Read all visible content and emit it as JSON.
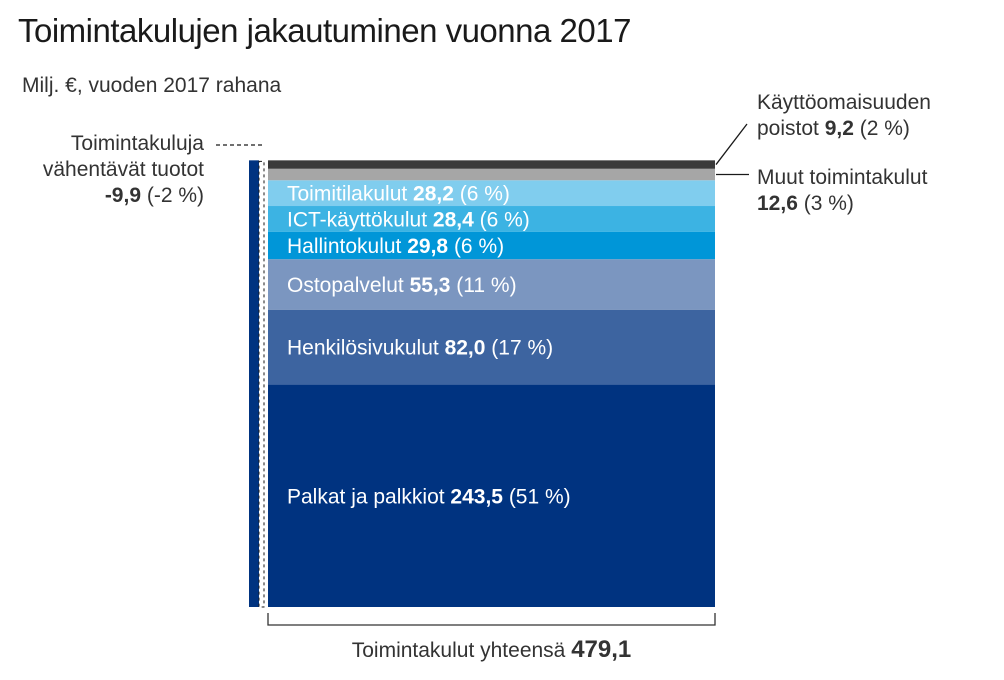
{
  "title": "Toimintakulujen jakautuminen vuonna 2017",
  "subtitle": "Milj. €, vuoden 2017 rahana",
  "chart_data": {
    "type": "bar",
    "title": "Toimintakulujen jakautuminen vuonna 2017",
    "subtitle": "Milj. €, vuoden 2017 rahana",
    "stacked": true,
    "segments": [
      {
        "name": "Palkat ja palkkiot",
        "value_label": "243,5",
        "pct_label": "(51 %)",
        "value": 243.5,
        "color": "#003380",
        "text_color": "#ffffff",
        "label_inside": true
      },
      {
        "name": "Henkilösivukulut",
        "value_label": "82,0",
        "pct_label": "(17 %)",
        "value": 82.0,
        "color": "#3d64a0",
        "text_color": "#ffffff",
        "label_inside": true
      },
      {
        "name": "Ostopalvelut",
        "value_label": "55,3",
        "pct_label": "(11 %)",
        "value": 55.3,
        "color": "#7b96c0",
        "text_color": "#ffffff",
        "label_inside": true
      },
      {
        "name": "Hallintokulut",
        "value_label": "29,8",
        "pct_label": "(6 %)",
        "value": 29.8,
        "color": "#0096d8",
        "text_color": "#ffffff",
        "label_inside": true
      },
      {
        "name": "ICT-käyttökulut",
        "value_label": "28,4",
        "pct_label": "(6 %)",
        "value": 28.4,
        "color": "#3cb3e3",
        "text_color": "#ffffff",
        "label_inside": true
      },
      {
        "name": "Toimitilakulut",
        "value_label": "28,2",
        "pct_label": "(6 %)",
        "value": 28.2,
        "color": "#80cdee",
        "text_color": "#ffffff",
        "label_inside": true
      },
      {
        "name": "Muut toimintakulut",
        "value_label": "12,6",
        "pct_label": "(3 %)",
        "value": 12.6,
        "color": "#a6a6a6",
        "label_inside": false
      },
      {
        "name": "Käyttöomaisuuden poistot",
        "value_label": "9,2",
        "pct_label": "(2 %)",
        "value": 9.2,
        "color": "#3a3a3a",
        "label_inside": false
      }
    ],
    "negative": {
      "name_line1": "Toimintakuluja",
      "name_line2": "vähentävät tuotot",
      "value_label": "-9,9",
      "pct_label": "(-2 %)",
      "value": -9.9,
      "color": "#003380"
    },
    "total": {
      "label": "Toimintakulut yhteensä",
      "value_label": "479,1",
      "value": 479.1
    }
  }
}
